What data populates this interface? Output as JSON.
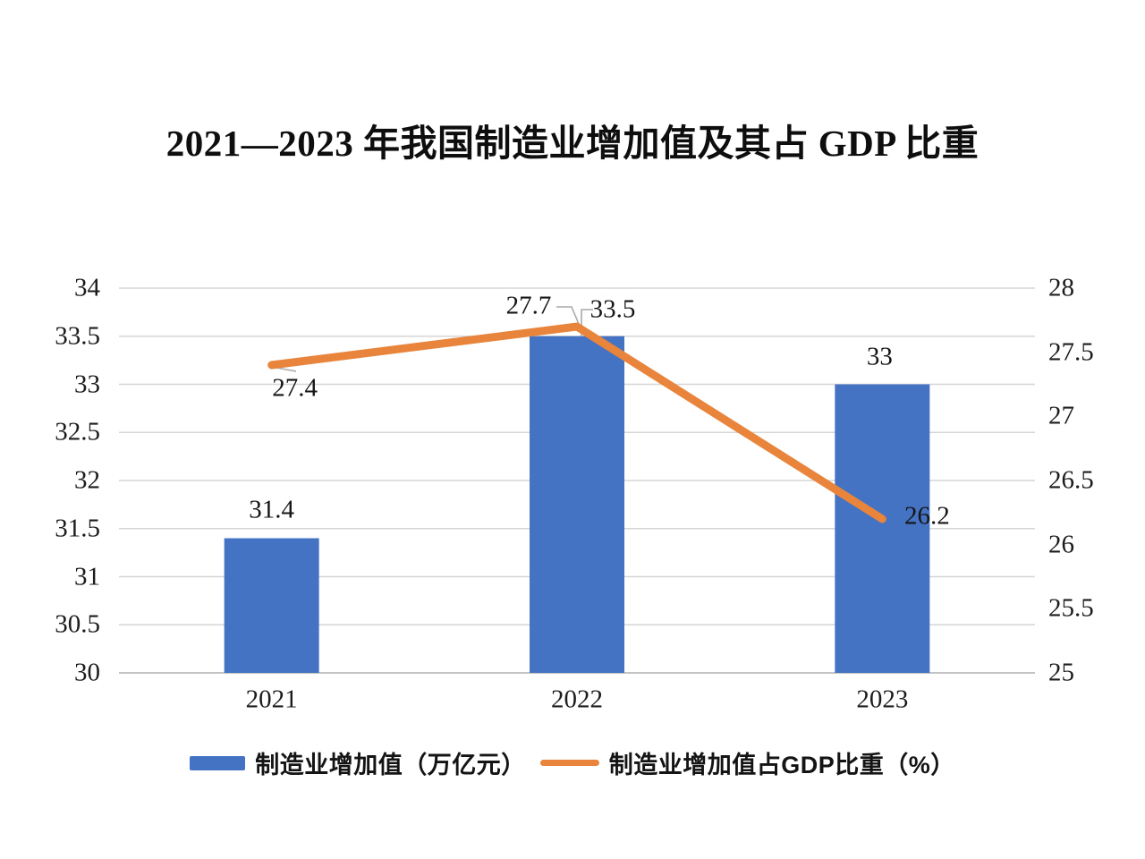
{
  "title": "2021—2023 年我国制造业增加值及其占 GDP 比重",
  "chart_data": {
    "type": "combo-bar-line",
    "title": "2021—2023 年我国制造业增加值及其占 GDP 比重",
    "categories": [
      "2021",
      "2022",
      "2023"
    ],
    "series": [
      {
        "name": "制造业增加值（万亿元）",
        "type": "bar",
        "axis": "left",
        "color": "#4573C4",
        "values": [
          31.4,
          33.5,
          33
        ],
        "labels": [
          "31.4",
          "33.5",
          "33"
        ]
      },
      {
        "name": "制造业增加值占GDP比重（%）",
        "type": "line",
        "axis": "right",
        "color": "#E8843C",
        "values": [
          27.4,
          27.7,
          26.2
        ],
        "labels": [
          "27.4",
          "27.7",
          "26.2"
        ]
      }
    ],
    "left_axis": {
      "min": 30,
      "max": 34,
      "step": 0.5,
      "ticks": [
        "34",
        "33.5",
        "33",
        "32.5",
        "32",
        "31.5",
        "31",
        "30.5",
        "30"
      ]
    },
    "right_axis": {
      "min": 25,
      "max": 28,
      "step": 0.5,
      "ticks": [
        "28",
        "27.5",
        "27",
        "26.5",
        "26",
        "25.5",
        "25"
      ]
    },
    "grid": true,
    "legend_position": "bottom",
    "colors": {
      "bar": "#4573C4",
      "line": "#E8843C",
      "gridline": "#D6D6D6",
      "axis_line": "#C4C4C4",
      "leader_line": "#A9A9A9",
      "text": "#1a1a1a"
    }
  }
}
